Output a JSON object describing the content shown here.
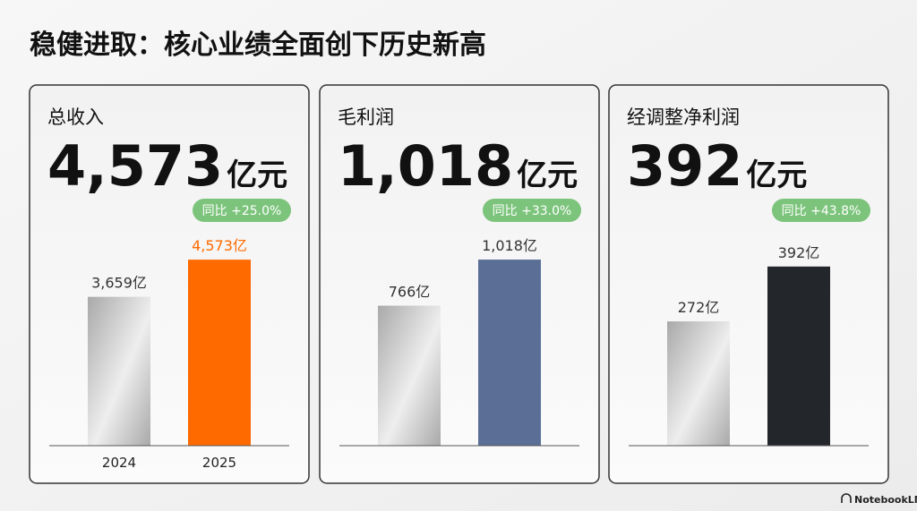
{
  "title": "稳健进取：核心业绩全面创下历史新高",
  "footer": "NotebookLM",
  "chart_data": [
    {
      "type": "bar",
      "title": "总收入",
      "headline": "4,573",
      "headline_unit": "亿元",
      "badge": "同比 +25.0%",
      "categories": [
        "2024",
        "2025"
      ],
      "values": [
        3659,
        4573
      ],
      "value_labels": [
        "3,659亿",
        "4,573亿"
      ],
      "colors": [
        "#a9a9a9",
        "#ff6a00"
      ],
      "label_colors": [
        "#333333",
        "#ff6a00"
      ],
      "ylim": [
        0,
        5280
      ]
    },
    {
      "type": "bar",
      "title": "毛利润",
      "headline": "1,018",
      "headline_unit": "亿元",
      "badge": "同比 +33.0%",
      "categories": [
        null,
        null
      ],
      "values": [
        766,
        1018
      ],
      "value_labels": [
        "766亿",
        "1,018亿"
      ],
      "colors": [
        "#a9a9a9",
        "#5b6f96"
      ],
      "label_colors": [
        "#333333",
        "#333333"
      ],
      "ylim": [
        0,
        1175
      ]
    },
    {
      "type": "bar",
      "title": "经调整净利润",
      "headline": "392",
      "headline_unit": "亿元",
      "badge": "同比 +43.8%",
      "categories": [
        null,
        null
      ],
      "values": [
        272,
        392
      ],
      "value_labels": [
        "272亿",
        "392亿"
      ],
      "colors": [
        "#a9a9a9",
        "#23272c"
      ],
      "label_colors": [
        "#333333",
        "#333333"
      ],
      "ylim": [
        0,
        470
      ]
    }
  ]
}
